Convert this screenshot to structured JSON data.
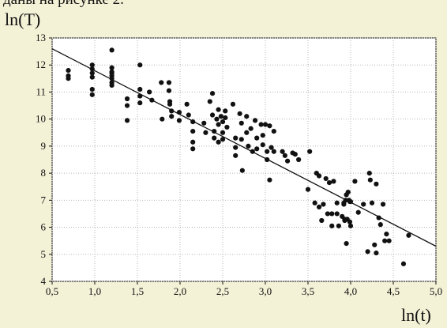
{
  "top_caption": "даны на рисунке 2.",
  "chart_data": {
    "type": "scatter",
    "title": "",
    "xlabel": "ln(t)",
    "ylabel": "ln(T)",
    "xlim": [
      0.5,
      5.0
    ],
    "ylim": [
      4,
      13
    ],
    "xticks": [
      "0,5",
      "1,0",
      "1,5",
      "2,0",
      "2,5",
      "3,0",
      "3,5",
      "4,0",
      "4,5",
      "5,0"
    ],
    "yticks": [
      "4",
      "5",
      "6",
      "7",
      "8",
      "9",
      "10",
      "11",
      "12",
      "13"
    ],
    "grid": true,
    "point_color": "#111111",
    "line_color": "#111111",
    "points": [
      [
        0.69,
        11.8
      ],
      [
        0.69,
        11.6
      ],
      [
        0.69,
        11.5
      ],
      [
        0.97,
        12.0
      ],
      [
        0.97,
        11.85
      ],
      [
        0.97,
        11.7
      ],
      [
        0.97,
        11.55
      ],
      [
        0.97,
        11.1
      ],
      [
        0.97,
        10.9
      ],
      [
        1.2,
        12.55
      ],
      [
        1.2,
        11.9
      ],
      [
        1.2,
        11.75
      ],
      [
        1.2,
        11.7
      ],
      [
        1.2,
        11.6
      ],
      [
        1.2,
        11.5
      ],
      [
        1.2,
        11.35
      ],
      [
        1.2,
        11.25
      ],
      [
        1.38,
        10.75
      ],
      [
        1.38,
        10.5
      ],
      [
        1.38,
        9.95
      ],
      [
        1.53,
        12.0
      ],
      [
        1.53,
        11.1
      ],
      [
        1.53,
        10.85
      ],
      [
        1.53,
        10.6
      ],
      [
        1.64,
        11.0
      ],
      [
        1.67,
        10.7
      ],
      [
        1.78,
        11.35
      ],
      [
        1.79,
        10.0
      ],
      [
        1.87,
        11.35
      ],
      [
        1.87,
        11.05
      ],
      [
        1.88,
        10.65
      ],
      [
        1.88,
        10.55
      ],
      [
        1.9,
        10.3
      ],
      [
        1.9,
        10.1
      ],
      [
        1.99,
        10.25
      ],
      [
        1.99,
        9.95
      ],
      [
        2.08,
        10.55
      ],
      [
        2.1,
        10.15
      ],
      [
        2.15,
        9.9
      ],
      [
        2.15,
        9.55
      ],
      [
        2.15,
        9.15
      ],
      [
        2.15,
        8.9
      ],
      [
        2.28,
        9.85
      ],
      [
        2.3,
        9.5
      ],
      [
        2.35,
        10.65
      ],
      [
        2.38,
        10.95
      ],
      [
        2.38,
        10.15
      ],
      [
        2.4,
        9.55
      ],
      [
        2.4,
        9.3
      ],
      [
        2.43,
        10.0
      ],
      [
        2.45,
        10.35
      ],
      [
        2.45,
        9.8
      ],
      [
        2.45,
        9.15
      ],
      [
        2.48,
        10.1
      ],
      [
        2.5,
        9.9
      ],
      [
        2.5,
        9.5
      ],
      [
        2.5,
        9.25
      ],
      [
        2.53,
        10.3
      ],
      [
        2.53,
        10.05
      ],
      [
        2.55,
        9.7
      ],
      [
        2.62,
        10.55
      ],
      [
        2.65,
        9.3
      ],
      [
        2.65,
        8.95
      ],
      [
        2.65,
        8.65
      ],
      [
        2.7,
        10.2
      ],
      [
        2.72,
        9.85
      ],
      [
        2.72,
        9.25
      ],
      [
        2.73,
        8.1
      ],
      [
        2.78,
        10.1
      ],
      [
        2.78,
        9.5
      ],
      [
        2.8,
        9.0
      ],
      [
        2.83,
        9.65
      ],
      [
        2.85,
        8.8
      ],
      [
        2.88,
        9.95
      ],
      [
        2.9,
        9.3
      ],
      [
        2.9,
        8.9
      ],
      [
        2.95,
        9.8
      ],
      [
        2.97,
        9.4
      ],
      [
        2.97,
        9.05
      ],
      [
        3.0,
        9.8
      ],
      [
        3.02,
        8.8
      ],
      [
        3.02,
        8.5
      ],
      [
        3.05,
        9.75
      ],
      [
        3.05,
        7.75
      ],
      [
        3.07,
        8.95
      ],
      [
        3.1,
        9.55
      ],
      [
        3.1,
        8.8
      ],
      [
        3.2,
        8.8
      ],
      [
        3.23,
        8.65
      ],
      [
        3.26,
        8.45
      ],
      [
        3.32,
        8.75
      ],
      [
        3.35,
        8.7
      ],
      [
        3.39,
        8.5
      ],
      [
        3.5,
        7.4
      ],
      [
        3.52,
        8.8
      ],
      [
        3.58,
        6.9
      ],
      [
        3.6,
        8.0
      ],
      [
        3.63,
        7.9
      ],
      [
        3.63,
        6.75
      ],
      [
        3.66,
        6.25
      ],
      [
        3.68,
        6.85
      ],
      [
        3.71,
        7.8
      ],
      [
        3.73,
        6.5
      ],
      [
        3.75,
        7.65
      ],
      [
        3.78,
        6.05
      ],
      [
        3.78,
        6.5
      ],
      [
        3.8,
        7.7
      ],
      [
        3.84,
        6.9
      ],
      [
        3.84,
        6.5
      ],
      [
        3.86,
        6.05
      ],
      [
        3.9,
        6.4
      ],
      [
        3.92,
        6.9
      ],
      [
        3.92,
        6.85
      ],
      [
        3.93,
        6.25
      ],
      [
        3.93,
        6.3
      ],
      [
        3.94,
        7.0
      ],
      [
        3.95,
        7.2
      ],
      [
        3.95,
        5.4
      ],
      [
        3.96,
        6.3
      ],
      [
        3.97,
        7.3
      ],
      [
        3.98,
        7.0
      ],
      [
        3.99,
        6.95
      ],
      [
        3.99,
        6.2
      ],
      [
        4.0,
        6.95
      ],
      [
        4.0,
        6.05
      ],
      [
        4.05,
        7.7
      ],
      [
        4.09,
        6.55
      ],
      [
        4.15,
        6.85
      ],
      [
        4.2,
        5.1
      ],
      [
        4.22,
        8.0
      ],
      [
        4.23,
        7.75
      ],
      [
        4.25,
        6.9
      ],
      [
        4.28,
        5.35
      ],
      [
        4.3,
        7.6
      ],
      [
        4.3,
        5.05
      ],
      [
        4.33,
        6.35
      ],
      [
        4.35,
        6.1
      ],
      [
        4.38,
        6.85
      ],
      [
        4.4,
        5.5
      ],
      [
        4.42,
        5.75
      ],
      [
        4.45,
        5.5
      ],
      [
        4.62,
        4.65
      ],
      [
        4.68,
        5.7
      ]
    ],
    "fit_line": {
      "x": [
        0.5,
        5.0
      ],
      "y": [
        12.6,
        5.3
      ]
    }
  }
}
